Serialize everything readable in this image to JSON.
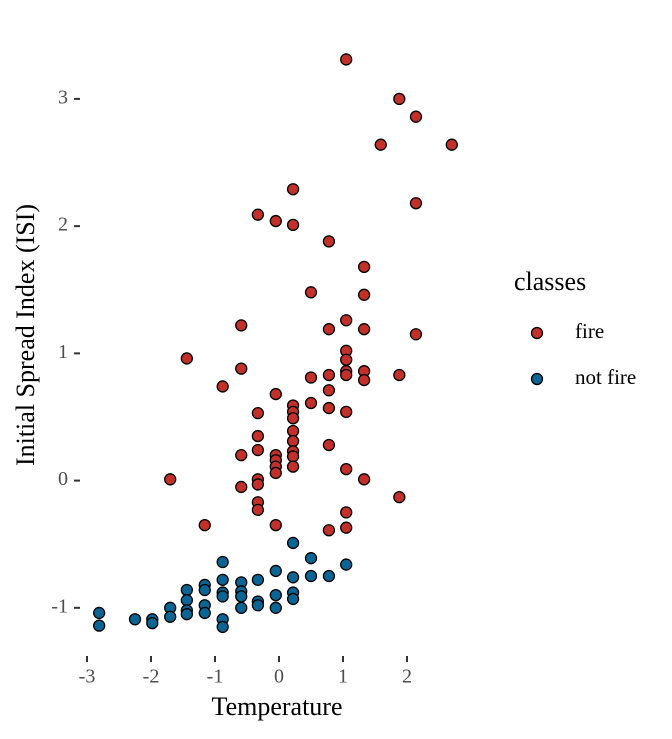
{
  "chart_data": {
    "type": "scatter",
    "xlabel": "Temperature",
    "ylabel": "Initial Spread Index (ISI)",
    "legend_title": "classes",
    "legend_position": "right",
    "xlim": [
      -3.1,
      2.85
    ],
    "ylim": [
      -1.3,
      3.4
    ],
    "xticks": [
      -3,
      -2,
      -1,
      0,
      1,
      2
    ],
    "yticks": [
      -1,
      0,
      1,
      2,
      3
    ],
    "series": [
      {
        "name": "fire",
        "color": "#c3302a",
        "x": [
          1.05,
          1.88,
          2.14,
          1.59,
          2.7,
          0.22,
          -0.33,
          -0.05,
          0.22,
          2.14,
          0.78,
          1.33,
          0.5,
          1.33,
          1.05,
          0.78,
          1.33,
          -0.59,
          2.14,
          -1.44,
          1.05,
          1.05,
          -0.59,
          0.78,
          1.05,
          1.05,
          1.33,
          1.33,
          1.88,
          0.5,
          -0.88,
          -0.05,
          0.78,
          0.22,
          0.22,
          0.5,
          0.78,
          1.05,
          -0.33,
          0.22,
          0.22,
          -0.33,
          0.22,
          0.78,
          -0.33,
          0.22,
          -0.59,
          -0.05,
          -0.05,
          0.22,
          -0.05,
          0.22,
          -0.05,
          1.05,
          -1.7,
          -0.33,
          1.33,
          -0.33,
          -0.59,
          1.88,
          -0.33,
          -0.33,
          1.05,
          -1.16,
          -0.05,
          1.05,
          0.78
        ],
        "values": [
          3.31,
          3.0,
          2.86,
          2.64,
          2.64,
          2.29,
          2.09,
          2.04,
          2.01,
          2.18,
          1.88,
          1.68,
          1.48,
          1.46,
          1.26,
          1.19,
          1.19,
          1.22,
          1.15,
          0.96,
          1.02,
          0.95,
          0.88,
          0.83,
          0.86,
          0.83,
          0.86,
          0.79,
          0.83,
          0.81,
          0.74,
          0.68,
          0.71,
          0.59,
          0.54,
          0.61,
          0.57,
          0.54,
          0.53,
          0.49,
          0.39,
          0.35,
          0.31,
          0.28,
          0.24,
          0.23,
          0.2,
          0.2,
          0.16,
          0.19,
          0.11,
          0.11,
          0.06,
          0.09,
          0.01,
          0.01,
          0.01,
          -0.03,
          -0.05,
          -0.13,
          -0.17,
          -0.23,
          -0.25,
          -0.35,
          -0.35,
          -0.37,
          -0.39
        ]
      },
      {
        "name": "not fire",
        "color": "#0b6594",
        "x": [
          0.22,
          -0.88,
          0.5,
          1.05,
          -0.05,
          0.22,
          0.5,
          0.78,
          -0.33,
          -0.59,
          -0.88,
          -1.16,
          -1.44,
          -1.16,
          -0.88,
          -0.59,
          -0.88,
          -0.05,
          0.22,
          0.22,
          -0.59,
          -0.33,
          -1.44,
          -0.33,
          -1.16,
          -0.59,
          -0.05,
          -1.7,
          -1.44,
          -1.16,
          -1.44,
          -1.7,
          -2.81,
          -2.25,
          -1.98,
          -1.98,
          -0.88,
          -0.88,
          -2.81
        ],
        "values": [
          -0.49,
          -0.64,
          -0.61,
          -0.66,
          -0.71,
          -0.76,
          -0.75,
          -0.75,
          -0.78,
          -0.8,
          -0.78,
          -0.82,
          -0.86,
          -0.86,
          -0.88,
          -0.87,
          -0.91,
          -0.9,
          -0.88,
          -0.93,
          -0.91,
          -0.95,
          -0.94,
          -0.98,
          -0.98,
          -1.0,
          -1.0,
          -1.0,
          -1.02,
          -1.04,
          -1.05,
          -1.07,
          -1.04,
          -1.09,
          -1.09,
          -1.12,
          -1.09,
          -1.15,
          -1.14
        ]
      }
    ]
  }
}
